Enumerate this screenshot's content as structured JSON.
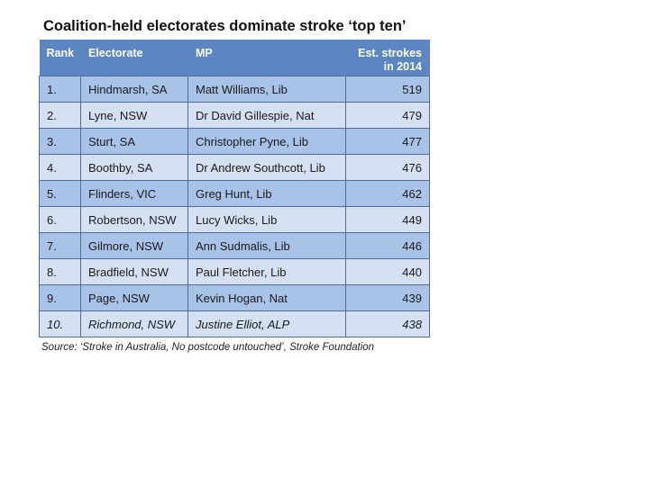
{
  "title": "Coalition-held electorates dominate stroke ‘top ten’",
  "table": {
    "headers": {
      "rank": "Rank",
      "electorate": "Electorate",
      "mp": "MP",
      "strokes_line1": "Est. strokes",
      "strokes_line2": "in 2014"
    },
    "rows": [
      {
        "rank": "1.",
        "electorate": "Hindmarsh, SA",
        "mp": "Matt Williams, Lib",
        "strokes": "519"
      },
      {
        "rank": "2.",
        "electorate": "Lyne, NSW",
        "mp": "Dr David Gillespie, Nat",
        "strokes": "479"
      },
      {
        "rank": "3.",
        "electorate": "Sturt, SA",
        "mp": "Christopher Pyne, Lib",
        "strokes": "477"
      },
      {
        "rank": "4.",
        "electorate": "Boothby, SA",
        "mp": "Dr Andrew Southcott, Lib",
        "strokes": "476"
      },
      {
        "rank": "5.",
        "electorate": "Flinders, VIC",
        "mp": "Greg Hunt, Lib",
        "strokes": "462"
      },
      {
        "rank": "6.",
        "electorate": "Robertson, NSW",
        "mp": "Lucy Wicks, Lib",
        "strokes": "449"
      },
      {
        "rank": "7.",
        "electorate": "Gilmore, NSW",
        "mp": "Ann Sudmalis, Lib",
        "strokes": "446"
      },
      {
        "rank": "8.",
        "electorate": "Bradfield, NSW",
        "mp": "Paul Fletcher, Lib",
        "strokes": "440"
      },
      {
        "rank": "9.",
        "electorate": "Page, NSW",
        "mp": "Kevin Hogan, Nat",
        "strokes": "439"
      },
      {
        "rank": "10.",
        "electorate": "Richmond, NSW",
        "mp": "Justine Elliot, ALP",
        "strokes": "438"
      }
    ]
  },
  "source": "Source: ‘Stroke in Australia, No postcode untouched’, Stroke Foundation",
  "colors": {
    "header_bg": "#5b86c2",
    "row_odd": "#a9c2e8",
    "row_even": "#d5e0f3",
    "grid": "#4f6d98"
  }
}
